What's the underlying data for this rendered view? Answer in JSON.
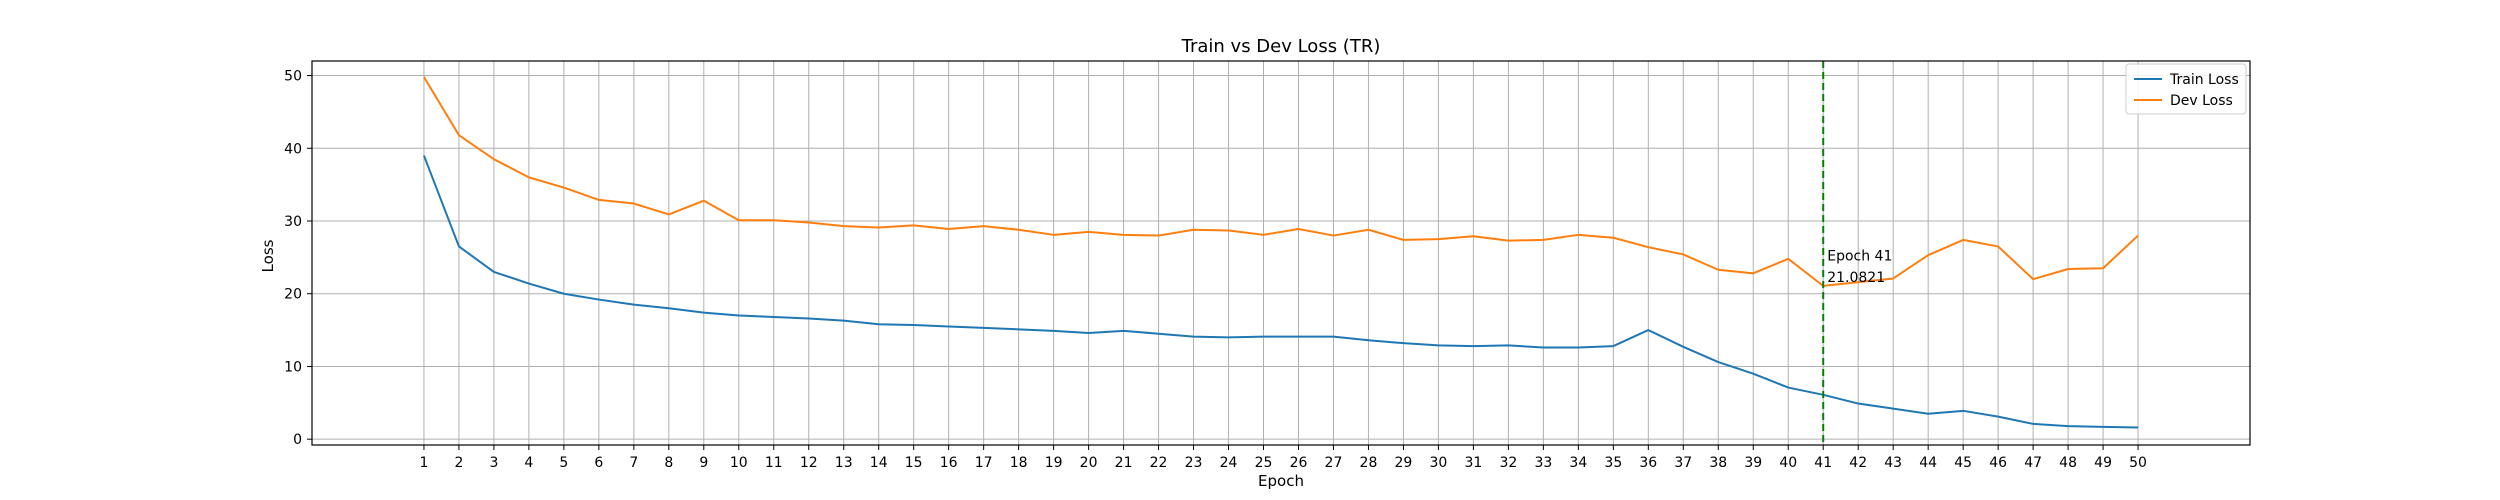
{
  "chart_data": {
    "type": "line",
    "title": "Train vs Dev Loss (TR)",
    "xlabel": "Epoch",
    "ylabel": "Loss",
    "xlim": [
      -2.2,
      53.2
    ],
    "ylim": [
      -0.8,
      52.0
    ],
    "x": [
      1,
      2,
      3,
      4,
      5,
      6,
      7,
      8,
      9,
      10,
      11,
      12,
      13,
      14,
      15,
      16,
      17,
      18,
      19,
      20,
      21,
      22,
      23,
      24,
      25,
      26,
      27,
      28,
      29,
      30,
      31,
      32,
      33,
      34,
      35,
      36,
      37,
      38,
      39,
      40,
      41,
      42,
      43,
      44,
      45,
      46,
      47,
      48,
      49,
      50
    ],
    "x_ticks": [
      "1",
      "2",
      "3",
      "4",
      "5",
      "6",
      "7",
      "8",
      "9",
      "10",
      "11",
      "12",
      "13",
      "14",
      "15",
      "16",
      "17",
      "18",
      "19",
      "20",
      "21",
      "22",
      "23",
      "24",
      "25",
      "26",
      "27",
      "28",
      "29",
      "30",
      "31",
      "32",
      "33",
      "34",
      "35",
      "36",
      "37",
      "38",
      "39",
      "40",
      "41",
      "42",
      "43",
      "44",
      "45",
      "46",
      "47",
      "48",
      "49",
      "50"
    ],
    "y_ticks": [
      0,
      10,
      20,
      30,
      40,
      50
    ],
    "y_tick_labels": [
      "0",
      "10",
      "20",
      "30",
      "40",
      "50"
    ],
    "grid": true,
    "legend_position": "top-right",
    "series": [
      {
        "name": "Train Loss",
        "color": "#1f77b4",
        "values": [
          39.0,
          26.5,
          23.0,
          21.4,
          20.0,
          19.2,
          18.5,
          18.0,
          17.4,
          17.0,
          16.8,
          16.6,
          16.3,
          15.8,
          15.7,
          15.5,
          15.3,
          15.1,
          14.9,
          14.6,
          14.9,
          14.5,
          14.1,
          14.0,
          14.1,
          14.1,
          14.1,
          13.6,
          13.2,
          12.9,
          12.8,
          12.9,
          12.6,
          12.6,
          12.8,
          15.0,
          12.7,
          10.6,
          9.0,
          7.1,
          6.1,
          4.9,
          4.2,
          3.5,
          3.9,
          3.1,
          2.1,
          1.8,
          1.7,
          1.6
        ]
      },
      {
        "name": "Dev Loss",
        "color": "#ff7f0e",
        "values": [
          49.8,
          41.8,
          38.5,
          36.0,
          34.6,
          32.9,
          32.4,
          30.9,
          32.8,
          30.1,
          30.1,
          29.8,
          29.3,
          29.1,
          29.4,
          28.9,
          29.3,
          28.8,
          28.1,
          28.5,
          28.1,
          28.0,
          28.8,
          28.7,
          28.1,
          28.9,
          28.0,
          28.8,
          27.4,
          27.5,
          27.9,
          27.3,
          27.4,
          28.1,
          27.7,
          26.4,
          25.4,
          23.3,
          22.8,
          24.8,
          21.08,
          21.6,
          22.1,
          25.3,
          27.4,
          26.5,
          22.0,
          23.4,
          23.5,
          28.0
        ]
      }
    ],
    "marker": {
      "x": 41,
      "color": "#008000",
      "style": "dashed",
      "label_line1": "Epoch 41",
      "label_line2": "21.0821"
    }
  }
}
